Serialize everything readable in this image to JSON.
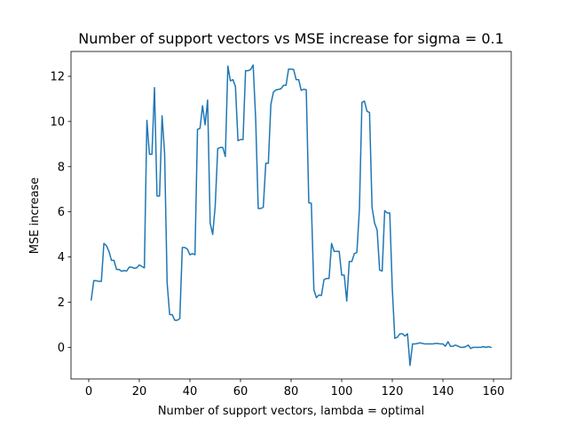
{
  "chart_data": {
    "type": "line",
    "title": "Number of support vectors vs MSE increase for sigma = 0.1",
    "xlabel": "Number of support vectors, lambda = optimal",
    "ylabel": "MSE increase",
    "xlim": [
      -7,
      167
    ],
    "ylim": [
      -1.4,
      13.1
    ],
    "xticks": [
      0,
      20,
      40,
      60,
      80,
      100,
      120,
      140,
      160
    ],
    "yticks": [
      0,
      2,
      4,
      6,
      8,
      10,
      12
    ],
    "grid": false,
    "legend": "none",
    "line_color": "#1f77b4",
    "series": [
      {
        "x": [
          1,
          2,
          3,
          4,
          5,
          6,
          7,
          8,
          9,
          10,
          11,
          12,
          13,
          14,
          15,
          16,
          17,
          18,
          19,
          20,
          21,
          22,
          23,
          24,
          25,
          26,
          27,
          28,
          29,
          30,
          31,
          32,
          33,
          34,
          35,
          36,
          37,
          38,
          39,
          40,
          41,
          42,
          43,
          44,
          45,
          46,
          47,
          48,
          49,
          50,
          51,
          52,
          53,
          54,
          55,
          56,
          57,
          58,
          59,
          60,
          61,
          62,
          63,
          64,
          65,
          66,
          67,
          68,
          69,
          70,
          71,
          72,
          73,
          74,
          75,
          76,
          77,
          78,
          79,
          80,
          81,
          82,
          83,
          84,
          85,
          86,
          87,
          88,
          89,
          90,
          91,
          92,
          93,
          94,
          95,
          96,
          97,
          98,
          99,
          100,
          101,
          102,
          103,
          104,
          105,
          106,
          107,
          108,
          109,
          110,
          111,
          112,
          113,
          114,
          115,
          116,
          117,
          118,
          119,
          120,
          121,
          122,
          123,
          124,
          125,
          126,
          127,
          128,
          129,
          130,
          131,
          132,
          133,
          134,
          135,
          136,
          137,
          138,
          139,
          140,
          141,
          142,
          143,
          144,
          145,
          146,
          147,
          148,
          149,
          150,
          151,
          152,
          153,
          154,
          155,
          156,
          157,
          158,
          159
        ],
        "values": [
          2.1,
          2.95,
          2.95,
          2.92,
          2.92,
          4.6,
          4.5,
          4.25,
          3.85,
          3.85,
          3.45,
          3.45,
          3.37,
          3.4,
          3.38,
          3.55,
          3.55,
          3.5,
          3.52,
          3.65,
          3.58,
          3.52,
          10.05,
          8.55,
          8.55,
          11.5,
          6.7,
          6.7,
          10.25,
          8.6,
          2.85,
          1.45,
          1.45,
          1.2,
          1.2,
          1.27,
          4.42,
          4.42,
          4.35,
          4.1,
          4.15,
          4.1,
          9.65,
          9.7,
          10.7,
          9.85,
          10.95,
          5.5,
          5.0,
          6.25,
          8.8,
          8.85,
          8.85,
          8.45,
          12.45,
          11.8,
          11.85,
          11.55,
          9.15,
          9.2,
          9.2,
          12.25,
          12.25,
          12.3,
          12.5,
          10.1,
          6.15,
          6.15,
          6.2,
          8.15,
          8.15,
          10.75,
          11.3,
          11.4,
          11.42,
          11.45,
          11.6,
          11.6,
          12.32,
          12.32,
          12.3,
          11.85,
          11.85,
          11.38,
          11.43,
          11.4,
          6.4,
          6.38,
          2.55,
          2.2,
          2.32,
          2.3,
          3.0,
          3.05,
          3.05,
          4.6,
          4.25,
          4.25,
          4.25,
          3.2,
          3.2,
          2.05,
          3.8,
          3.8,
          4.15,
          4.2,
          6.1,
          10.85,
          10.9,
          10.45,
          10.4,
          6.2,
          5.5,
          5.2,
          3.42,
          3.38,
          6.05,
          5.95,
          5.95,
          2.6,
          0.4,
          0.45,
          0.6,
          0.6,
          0.5,
          0.6,
          -0.8,
          0.15,
          0.15,
          0.17,
          0.2,
          0.17,
          0.15,
          0.15,
          0.15,
          0.15,
          0.17,
          0.17,
          0.15,
          0.15,
          0.05,
          0.25,
          0.05,
          0.05,
          0.1,
          0.05,
          0.0,
          0.0,
          0.03,
          0.1,
          -0.05,
          0.0,
          0.0,
          0.0,
          0.0,
          0.03,
          0.0,
          0.03,
          0.0
        ]
      }
    ]
  }
}
